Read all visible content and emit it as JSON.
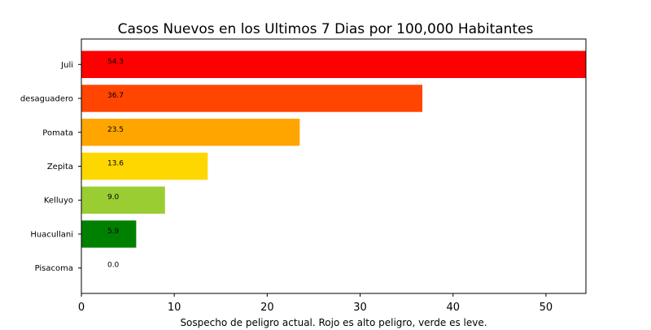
{
  "chart_data": {
    "type": "bar",
    "orientation": "horizontal",
    "title": "Casos Nuevos en los Ultimos 7 Dias por 100,000 Habitantes",
    "xlabel": "Sospecho de peligro actual. Rojo es alto peligro, verde es leve.",
    "ylabel": "",
    "categories": [
      "Juli",
      "desaguadero",
      "Pomata",
      "Zepita",
      "Kelluyo",
      "Huacullani",
      "Pisacoma"
    ],
    "values": [
      54.3,
      36.7,
      23.5,
      13.6,
      9.0,
      5.9,
      0.0
    ],
    "value_labels": [
      "54.3",
      "36.7",
      "23.5",
      "13.6",
      "9.0",
      "5.9",
      "0.0"
    ],
    "colors": [
      "#ff0000",
      "#ff4500",
      "#ffa500",
      "#ffd700",
      "#9acd32",
      "#008000",
      "#008000"
    ],
    "xlim": [
      0,
      54.3
    ],
    "xticks": [
      0,
      10,
      20,
      30,
      40,
      50
    ],
    "grid": false,
    "legend": "none"
  }
}
